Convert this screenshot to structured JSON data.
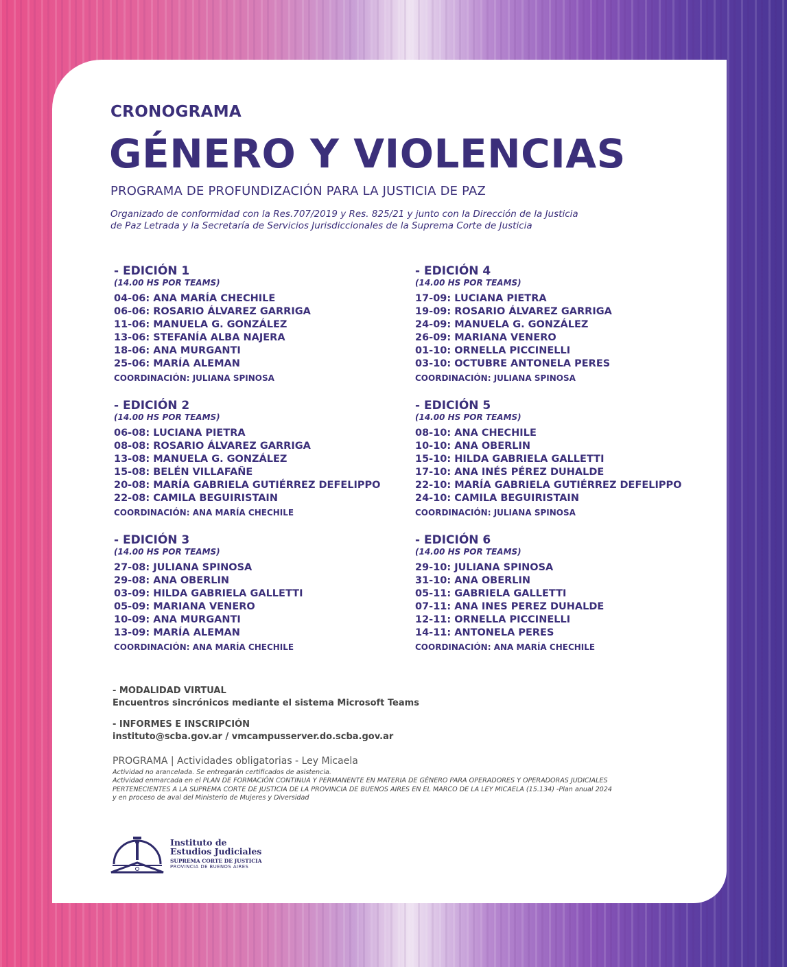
{
  "header": {
    "kicker": "CRONOGRAMA",
    "title": "GÉNERO Y VIOLENCIAS",
    "subtitle": "PROGRAMA DE PROFUNDIZACIÓN PARA LA JUSTICIA DE PAZ",
    "org_line1": "Organizado de conformidad con la Res.707/2019 y Res. 825/21 y junto con la Dirección de la Justicia",
    "org_line2": "de Paz Letrada y la Secretaría de Servicios Jurisdiccionales de la Suprema Corte de Justicia"
  },
  "editions": [
    {
      "title": "- EDICIÓN 1",
      "time": "(14.00 HS POR TEAMS)",
      "sessions": [
        "04-06: ANA MARÍA CHECHILE",
        "06-06: ROSARIO ÁLVAREZ GARRIGA",
        "11-06: MANUELA G. GONZÁLEZ",
        "13-06: STEFANÍA ALBA NAJERA",
        "18-06: ANA MURGANTI",
        "25-06: MARÍA ALEMAN"
      ],
      "coord": "COORDINACIÓN: JULIANA SPINOSA"
    },
    {
      "title": "- EDICIÓN 2",
      "time": "(14.00 HS POR TEAMS)",
      "sessions": [
        "06-08: LUCIANA PIETRA",
        "08-08: ROSARIO ÁLVAREZ GARRIGA",
        "13-08: MANUELA G. GONZÁLEZ",
        "15-08: BELÉN VILLAFAÑE",
        "20-08: MARÍA GABRIELA GUTIÉRREZ DEFELIPPO",
        "22-08: CAMILA BEGUIRISTAIN"
      ],
      "coord": "COORDINACIÓN: ANA MARÍA CHECHILE"
    },
    {
      "title": "- EDICIÓN 3",
      "time": "(14.00 HS POR TEAMS)",
      "sessions": [
        "27-08: JULIANA SPINOSA",
        "29-08: ANA OBERLIN",
        "03-09: HILDA GABRIELA GALLETTI",
        "05-09: MARIANA VENERO",
        "10-09: ANA MURGANTI",
        "13-09: MARÍA ALEMAN"
      ],
      "coord": "COORDINACIÓN: ANA MARÍA CHECHILE"
    },
    {
      "title": "- EDICIÓN 4",
      "time": "(14.00 HS POR TEAMS)",
      "sessions": [
        "17-09: LUCIANA PIETRA",
        "19-09: ROSARIO ÁLVAREZ GARRIGA",
        "24-09: MANUELA G. GONZÁLEZ",
        "26-09: MARIANA VENERO",
        "01-10: ORNELLA PICCINELLI",
        "03-10: OCTUBRE ANTONELA PERES"
      ],
      "coord": "COORDINACIÓN: JULIANA SPINOSA"
    },
    {
      "title": "- EDICIÓN 5",
      "time": "(14.00 HS POR TEAMS)",
      "sessions": [
        "08-10: ANA CHECHILE",
        "10-10: ANA OBERLIN",
        "15-10: HILDA GABRIELA GALLETTI",
        "17-10: ANA INÉS PÉREZ DUHALDE",
        "22-10: MARÍA GABRIELA GUTIÉRREZ DEFELIPPO",
        "24-10: CAMILA BEGUIRISTAIN"
      ],
      "coord": "COORDINACIÓN: JULIANA SPINOSA"
    },
    {
      "title": "- EDICIÓN 6",
      "time": "(14.00 HS POR TEAMS)",
      "sessions": [
        "29-10: JULIANA SPINOSA",
        "31-10: ANA OBERLIN",
        "05-11: GABRIELA GALLETTI",
        "07-11: ANA INES PEREZ DUHALDE",
        "12-11: ORNELLA PICCINELLI",
        "14-11: ANTONELA PERES"
      ],
      "coord": "COORDINACIÓN: ANA MARÍA CHECHILE"
    }
  ],
  "modalidad": {
    "label": "- MODALIDAD VIRTUAL",
    "text": "Encuentros sincrónicos mediante el sistema Microsoft Teams"
  },
  "informes": {
    "label": "- INFORMES E INSCRIPCIÓN",
    "text": "instituto@scba.gov.ar / vmcampusserver.do.scba.gov.ar"
  },
  "footer": {
    "programa": "PROGRAMA | Actividades obligatorias - Ley Micaela",
    "fine1": "Actividad no arancelada. Se entregarán certificados de asistencia.",
    "fine2": "Actividad enmarcada en el PLAN DE FORMACIÓN CONTINUA Y PERMANENTE EN MATERIA DE GÉNERO PARA OPERADORES Y OPERADORAS JUDICIALES",
    "fine3": "PERTENECIENTES A LA SUPREMA CORTE DE JUSTICIA DE LA PROVINCIA DE BUENOS AIRES EN EL MARCO DE LA LEY MICAELA (15.134) -Plan anual 2024",
    "fine4": "y en proceso de aval del Ministerio de Mujeres y Diversidad"
  },
  "logo": {
    "line1": "Instituto de",
    "line2": "Estudios Judiciales",
    "line3": "SUPREMA CORTE DE JUSTICIA",
    "line4": "PROVINCIA DE BUENOS AIRES"
  },
  "colors": {
    "primary": "#3b2f7a",
    "background_left": "#e8508a",
    "background_right": "#4a3595"
  }
}
